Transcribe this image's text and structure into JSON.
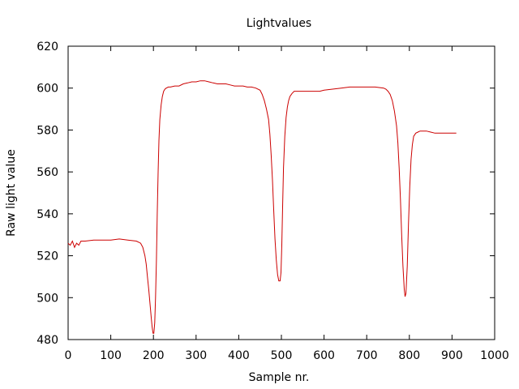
{
  "chart_data": {
    "type": "line",
    "title": "Lightvalues",
    "xlabel": "Sample nr.",
    "ylabel": "Raw light value",
    "xlim": [
      0,
      1000
    ],
    "ylim": [
      480,
      620
    ],
    "xticks": [
      0,
      100,
      200,
      300,
      400,
      500,
      600,
      700,
      800,
      900,
      1000
    ],
    "yticks": [
      480,
      500,
      520,
      540,
      560,
      580,
      600,
      620
    ],
    "grid": false,
    "legend": "none",
    "series": [
      {
        "color": "#cc0000",
        "x": [
          0,
          5,
          10,
          15,
          20,
          25,
          30,
          40,
          60,
          80,
          100,
          120,
          140,
          160,
          170,
          175,
          180,
          183,
          186,
          189,
          192,
          195,
          197,
          199,
          201,
          203,
          205,
          207,
          209,
          211,
          213,
          215,
          218,
          221,
          224,
          227,
          230,
          235,
          240,
          250,
          260,
          270,
          280,
          290,
          300,
          310,
          320,
          330,
          340,
          350,
          360,
          370,
          380,
          390,
          400,
          410,
          420,
          430,
          440,
          450,
          455,
          460,
          465,
          470,
          473,
          476,
          479,
          482,
          485,
          488,
          491,
          494,
          497,
          499,
          501,
          503,
          505,
          508,
          511,
          514,
          517,
          520,
          525,
          530,
          535,
          540,
          550,
          560,
          570,
          580,
          590,
          600,
          620,
          640,
          660,
          680,
          700,
          720,
          740,
          745,
          750,
          755,
          760,
          765,
          770,
          773,
          776,
          779,
          782,
          785,
          788,
          790,
          792,
          795,
          798,
          801,
          804,
          807,
          810,
          815,
          820,
          825,
          830,
          840,
          850,
          860,
          870,
          880,
          890,
          900,
          910
        ],
        "values": [
          526,
          525,
          527,
          524,
          526,
          525,
          527,
          527,
          527.5,
          527.5,
          527.5,
          528,
          527.5,
          527,
          526,
          524,
          520,
          516,
          510,
          504,
          497,
          490,
          486,
          483,
          483,
          488,
          500,
          518,
          540,
          560,
          575,
          585,
          592,
          596,
          598.5,
          599.5,
          600,
          600.5,
          600.5,
          601,
          601,
          602,
          602.5,
          603,
          603,
          603.5,
          603.5,
          603,
          602.5,
          602,
          602,
          602,
          601.5,
          601,
          601,
          601,
          600.5,
          600.5,
          600,
          599,
          597,
          594,
          590,
          585,
          578,
          568,
          556,
          542,
          528,
          518,
          511,
          508,
          508,
          512,
          525,
          545,
          562,
          577,
          586,
          591,
          594,
          596,
          597.5,
          598.5,
          598.5,
          598.5,
          598.5,
          598.5,
          598.5,
          598.5,
          598.5,
          599,
          599.5,
          600,
          600.5,
          600.5,
          600.5,
          600.5,
          600,
          599.5,
          598.5,
          597,
          594,
          589,
          582,
          574,
          562,
          547,
          530,
          515,
          504,
          500.5,
          502,
          515,
          535,
          553,
          566,
          573,
          577,
          578.5,
          579,
          579.5,
          579.5,
          579.5,
          579,
          578.5,
          578.5,
          578.5,
          578.5,
          578.5,
          578.5
        ]
      }
    ]
  }
}
